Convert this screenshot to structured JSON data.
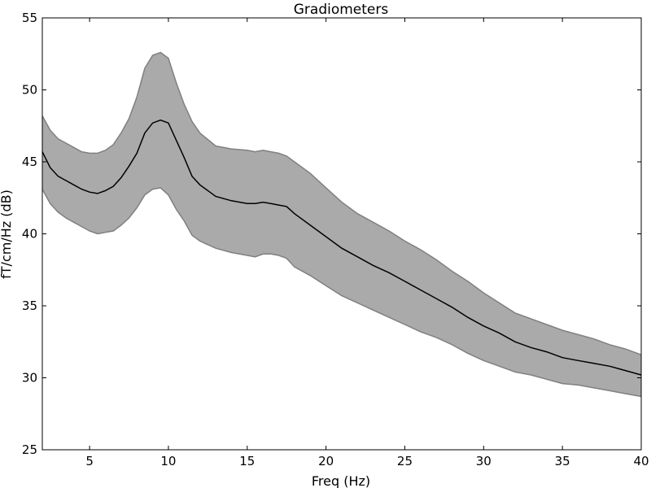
{
  "chart_data": {
    "type": "area",
    "title": "Gradiometers",
    "xlabel": "Freq (Hz)",
    "ylabel": "fT/cm/Hz (dB)",
    "xlim": [
      2,
      40
    ],
    "ylim": [
      25,
      55
    ],
    "x_ticks": [
      5,
      10,
      15,
      20,
      25,
      30,
      35,
      40
    ],
    "y_ticks": [
      25,
      30,
      35,
      40,
      45,
      50,
      55
    ],
    "grid": false,
    "legend": "none",
    "colors": {
      "band": "#aaaaaa",
      "band_edge": "#808080",
      "mean": "#000000"
    },
    "x": [
      2,
      2.5,
      3,
      3.5,
      4,
      4.5,
      5,
      5.5,
      6,
      6.5,
      7,
      7.5,
      8,
      8.5,
      9,
      9.5,
      10,
      10.5,
      11,
      11.5,
      12,
      13,
      14,
      15,
      15.5,
      16,
      16.5,
      17,
      17.5,
      18,
      19,
      20,
      21,
      22,
      23,
      24,
      25,
      26,
      27,
      28,
      29,
      30,
      31,
      32,
      33,
      34,
      35,
      36,
      37,
      38,
      39,
      40
    ],
    "series": [
      {
        "name": "",
        "values": [
          45.7,
          44.6,
          44.0,
          43.7,
          43.4,
          43.1,
          42.9,
          42.8,
          43.0,
          43.3,
          43.9,
          44.7,
          45.6,
          47.0,
          47.7,
          47.9,
          47.7,
          46.5,
          45.3,
          44.0,
          43.4,
          42.6,
          42.3,
          42.1,
          42.1,
          42.2,
          42.1,
          42.0,
          41.9,
          41.4,
          40.6,
          39.8,
          39.0,
          38.4,
          37.8,
          37.3,
          36.7,
          36.1,
          35.5,
          34.9,
          34.2,
          33.6,
          33.1,
          32.5,
          32.1,
          31.8,
          31.4,
          31.2,
          31.0,
          30.8,
          30.5,
          30.2
        ]
      }
    ],
    "band_upper": [
      48.2,
      47.2,
      46.6,
      46.3,
      46.0,
      45.7,
      45.6,
      45.6,
      45.8,
      46.2,
      47.0,
      48.0,
      49.5,
      51.5,
      52.4,
      52.6,
      52.2,
      50.5,
      49.0,
      47.8,
      47.0,
      46.1,
      45.9,
      45.8,
      45.7,
      45.8,
      45.7,
      45.6,
      45.4,
      45.0,
      44.2,
      43.2,
      42.2,
      41.4,
      40.8,
      40.2,
      39.5,
      38.9,
      38.2,
      37.4,
      36.7,
      35.9,
      35.2,
      34.5,
      34.1,
      33.7,
      33.3,
      33.0,
      32.7,
      32.3,
      32.0,
      31.6
    ],
    "band_lower": [
      43.1,
      42.1,
      41.5,
      41.1,
      40.8,
      40.5,
      40.2,
      40.0,
      40.1,
      40.2,
      40.6,
      41.1,
      41.8,
      42.7,
      43.1,
      43.2,
      42.7,
      41.7,
      40.9,
      39.9,
      39.5,
      39.0,
      38.7,
      38.5,
      38.4,
      38.6,
      38.6,
      38.5,
      38.3,
      37.7,
      37.1,
      36.4,
      35.7,
      35.2,
      34.7,
      34.2,
      33.7,
      33.2,
      32.8,
      32.3,
      31.7,
      31.2,
      30.8,
      30.4,
      30.2,
      29.9,
      29.6,
      29.5,
      29.3,
      29.1,
      28.9,
      28.7
    ]
  }
}
